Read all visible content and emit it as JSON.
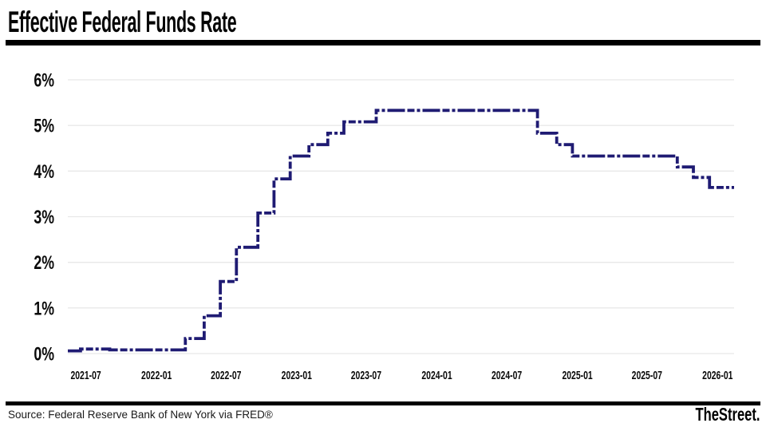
{
  "header": {
    "title": "Effective Federal Funds Rate"
  },
  "footer": {
    "source": "Source: Federal Reserve Bank of New York via FRED®",
    "brand": "TheStreet."
  },
  "colors": {
    "line": "#1f1b73",
    "grid": "#e8e8e8",
    "rule": "#000000",
    "background": "#ffffff",
    "tick_text": "#0a0a0a"
  },
  "chart_data": {
    "type": "line",
    "title": "Effective Federal Funds Rate",
    "step": true,
    "line_style": "dashed",
    "unit": "percent",
    "xlabel": "",
    "ylabel": "",
    "ylim": [
      0,
      6
    ],
    "grid": "horizontal",
    "legend": "none",
    "y_ticks": [
      "0%",
      "1%",
      "2%",
      "3%",
      "4%",
      "5%",
      "6%"
    ],
    "x_ticks": [
      "2021-07",
      "2022-01",
      "2022-07",
      "2023-01",
      "2023-07",
      "2024-01",
      "2024-07",
      "2025-01",
      "2025-07",
      "2026-01"
    ],
    "x_domain": [
      "2021-05-15",
      "2026-02-13"
    ],
    "series": [
      {
        "name": "Effective Federal Funds Rate",
        "points": [
          [
            "2021-05-15",
            0.06
          ],
          [
            "2021-06-17",
            0.1
          ],
          [
            "2021-09-01",
            0.08
          ],
          [
            "2022-03-17",
            0.33
          ],
          [
            "2022-05-05",
            0.83
          ],
          [
            "2022-06-16",
            1.58
          ],
          [
            "2022-07-28",
            2.33
          ],
          [
            "2022-09-22",
            3.08
          ],
          [
            "2022-11-03",
            3.83
          ],
          [
            "2022-12-15",
            4.33
          ],
          [
            "2023-02-02",
            4.58
          ],
          [
            "2023-03-23",
            4.83
          ],
          [
            "2023-05-04",
            5.08
          ],
          [
            "2023-07-27",
            5.33
          ],
          [
            "2024-09-19",
            4.83
          ],
          [
            "2024-11-08",
            4.58
          ],
          [
            "2024-12-19",
            4.33
          ],
          [
            "2025-09-18",
            4.09
          ],
          [
            "2025-10-30",
            3.86
          ],
          [
            "2025-12-11",
            3.64
          ],
          [
            "2026-02-13",
            3.64
          ]
        ]
      }
    ]
  }
}
